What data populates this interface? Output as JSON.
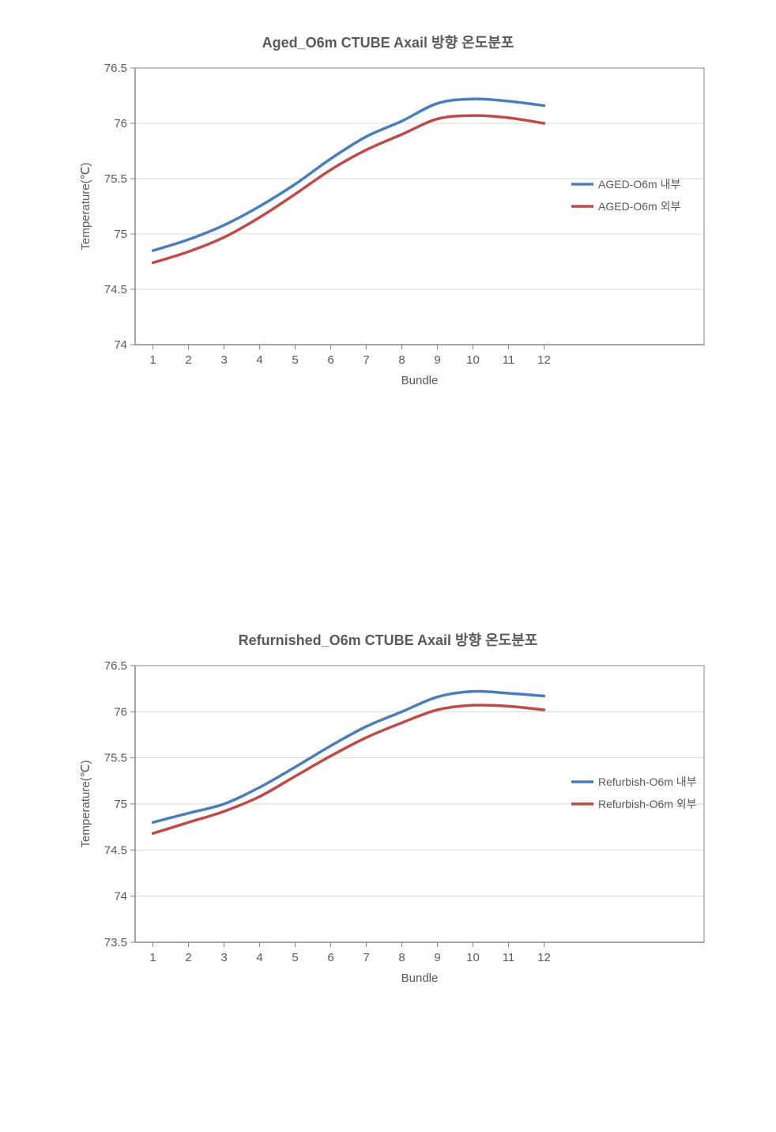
{
  "chart1": {
    "type": "line",
    "title": "Aged_O6m  CTUBE Axail 방향 온도분포",
    "xlabel": "Bundle",
    "ylabel": "Temperature(℃)",
    "xlim": [
      1,
      12
    ],
    "ylim": [
      74,
      76.5
    ],
    "xticks": [
      1,
      2,
      3,
      4,
      5,
      6,
      7,
      8,
      9,
      10,
      11,
      12
    ],
    "yticks": [
      74,
      74.5,
      75,
      75.5,
      76,
      76.5
    ],
    "title_fontsize": 18,
    "label_fontsize": 15,
    "tick_fontsize": 15,
    "background_color": "#ffffff",
    "grid_color": "#d9d9d9",
    "border_color": "#868686",
    "line_width": 3.5,
    "series": [
      {
        "name": "AGED-O6m 내부",
        "color": "#4a7ebb",
        "x": [
          1,
          2,
          3,
          4,
          5,
          6,
          7,
          8,
          9,
          10,
          11,
          12
        ],
        "y": [
          74.85,
          74.95,
          75.08,
          75.25,
          75.45,
          75.68,
          75.88,
          76.02,
          76.18,
          76.22,
          76.2,
          76.16
        ]
      },
      {
        "name": "AGED-O6m 외부",
        "color": "#be4b48",
        "x": [
          1,
          2,
          3,
          4,
          5,
          6,
          7,
          8,
          9,
          10,
          11,
          12
        ],
        "y": [
          74.74,
          74.84,
          74.97,
          75.15,
          75.36,
          75.58,
          75.76,
          75.9,
          76.04,
          76.07,
          76.05,
          76.0
        ]
      }
    ],
    "legend": {
      "position": "right",
      "items": [
        "AGED-O6m 내부",
        "AGED-O6m 외부"
      ]
    }
  },
  "chart2": {
    "type": "line",
    "title": "Refurnished_O6m  CTUBE Axail 방향 온도분포",
    "xlabel": "Bundle",
    "ylabel": "Temperature(℃)",
    "xlim": [
      1,
      12
    ],
    "ylim": [
      73.5,
      76.5
    ],
    "xticks": [
      1,
      2,
      3,
      4,
      5,
      6,
      7,
      8,
      9,
      10,
      11,
      12
    ],
    "yticks": [
      73.5,
      74,
      74.5,
      75,
      75.5,
      76,
      76.5
    ],
    "title_fontsize": 18,
    "label_fontsize": 15,
    "tick_fontsize": 15,
    "background_color": "#ffffff",
    "grid_color": "#d9d9d9",
    "border_color": "#868686",
    "line_width": 3.5,
    "series": [
      {
        "name": "Refurbish-O6m 내부",
        "color": "#4a7ebb",
        "x": [
          1,
          2,
          3,
          4,
          5,
          6,
          7,
          8,
          9,
          10,
          11,
          12
        ],
        "y": [
          74.8,
          74.9,
          75.0,
          75.18,
          75.4,
          75.63,
          75.84,
          76.0,
          76.16,
          76.22,
          76.2,
          76.17
        ]
      },
      {
        "name": "Refurbish-O6m 외부",
        "color": "#be4b48",
        "x": [
          1,
          2,
          3,
          4,
          5,
          6,
          7,
          8,
          9,
          10,
          11,
          12
        ],
        "y": [
          74.68,
          74.8,
          74.92,
          75.08,
          75.3,
          75.52,
          75.72,
          75.88,
          76.02,
          76.07,
          76.06,
          76.02
        ]
      }
    ],
    "legend": {
      "position": "right",
      "items": [
        "Refurbish-O6m 내부",
        "Refurbish-O6m 외부"
      ]
    }
  }
}
